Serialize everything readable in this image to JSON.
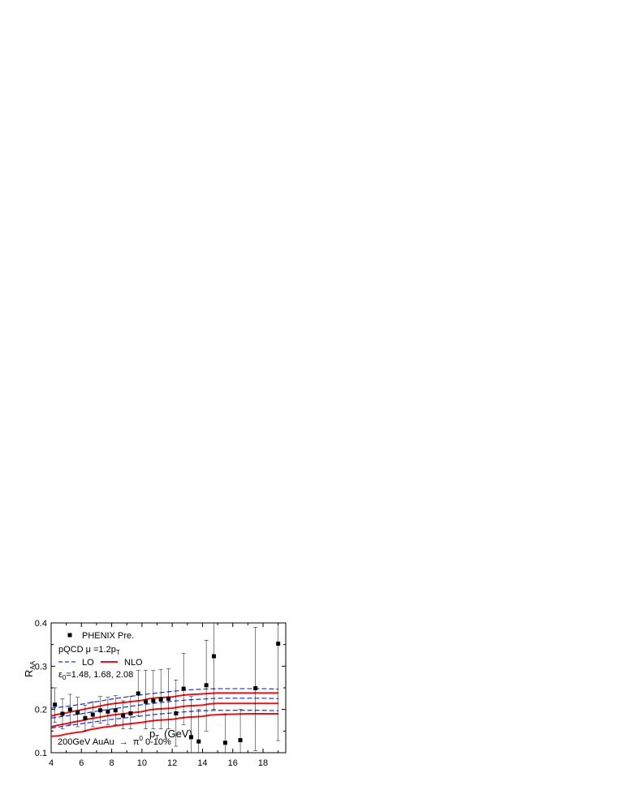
{
  "chart_data": {
    "type": "line",
    "xlabel_main": "p",
    "xlabel_sub": "T",
    "xlabel_unit": "(GeV)",
    "ylabel_main": "R",
    "ylabel_sub": "AA",
    "xlim": [
      4,
      19.5
    ],
    "ylim": [
      0.1,
      0.4
    ],
    "xticks": [
      4,
      6,
      8,
      10,
      12,
      14,
      16,
      18
    ],
    "yticks": [
      0.1,
      0.2,
      0.3,
      0.4
    ],
    "ytick_labels": [
      "0.1",
      "0.2",
      "0.3",
      "0.4"
    ],
    "legend": {
      "data_label": "PHENIX  Pre.",
      "model_line1_a": "pQCD  μ =1.2p",
      "model_line1_sub": "T",
      "lo_label": "LO",
      "nlo_label": "NLO",
      "eps_main": "ε",
      "eps_sub": "0",
      "eps_values": "=1.48, 1.68, 2.08"
    },
    "annotation": {
      "text_a": "200GeV  AuAu",
      "arrow": "→",
      "text_b": "π",
      "text_sup": "0",
      "text_c": " 0-10%"
    },
    "series": [
      {
        "name": "PHENIX  Pre.",
        "kind": "points",
        "color": "#000000",
        "points": [
          {
            "x": 4.25,
            "y": 0.211,
            "ylo": 0.17,
            "yhi": 0.25
          },
          {
            "x": 4.75,
            "y": 0.19,
            "ylo": 0.155,
            "yhi": 0.225
          },
          {
            "x": 5.25,
            "y": 0.2,
            "ylo": 0.165,
            "yhi": 0.235
          },
          {
            "x": 5.75,
            "y": 0.193,
            "ylo": 0.16,
            "yhi": 0.228
          },
          {
            "x": 6.25,
            "y": 0.18,
            "ylo": 0.15,
            "yhi": 0.21
          },
          {
            "x": 6.75,
            "y": 0.188,
            "ylo": 0.16,
            "yhi": 0.218
          },
          {
            "x": 7.25,
            "y": 0.198,
            "ylo": 0.168,
            "yhi": 0.23
          },
          {
            "x": 7.75,
            "y": 0.195,
            "ylo": 0.165,
            "yhi": 0.228
          },
          {
            "x": 8.25,
            "y": 0.198,
            "ylo": 0.165,
            "yhi": 0.232
          },
          {
            "x": 8.75,
            "y": 0.186,
            "ylo": 0.155,
            "yhi": 0.22
          },
          {
            "x": 9.25,
            "y": 0.191,
            "ylo": 0.155,
            "yhi": 0.23
          },
          {
            "x": 9.75,
            "y": 0.237,
            "ylo": 0.185,
            "yhi": 0.29
          },
          {
            "x": 10.25,
            "y": 0.218,
            "ylo": 0.155,
            "yhi": 0.29
          },
          {
            "x": 10.75,
            "y": 0.22,
            "ylo": 0.155,
            "yhi": 0.29
          },
          {
            "x": 11.25,
            "y": 0.223,
            "ylo": 0.155,
            "yhi": 0.292
          },
          {
            "x": 11.75,
            "y": 0.225,
            "ylo": 0.155,
            "yhi": 0.294
          },
          {
            "x": 12.25,
            "y": 0.191,
            "ylo": 0.115,
            "yhi": 0.268
          },
          {
            "x": 12.75,
            "y": 0.248,
            "ylo": 0.165,
            "yhi": 0.33
          },
          {
            "x": 13.25,
            "y": 0.136,
            "ylo": 0.1,
            "yhi": 0.23
          },
          {
            "x": 13.75,
            "y": 0.126,
            "ylo": 0.1,
            "yhi": 0.2
          },
          {
            "x": 14.25,
            "y": 0.256,
            "ylo": 0.15,
            "yhi": 0.36
          },
          {
            "x": 14.75,
            "y": 0.323,
            "ylo": 0.2,
            "yhi": 0.4
          },
          {
            "x": 15.5,
            "y": 0.123,
            "ylo": 0.1,
            "yhi": 0.19
          },
          {
            "x": 16.5,
            "y": 0.129,
            "ylo": 0.1,
            "yhi": 0.2
          },
          {
            "x": 17.5,
            "y": 0.249,
            "ylo": 0.105,
            "yhi": 0.39
          },
          {
            "x": 19.0,
            "y": 0.352,
            "ylo": 0.128,
            "yhi": 0.4
          }
        ]
      },
      {
        "name": "LO",
        "kind": "line",
        "dash": true,
        "color": "#1f2fd0",
        "curves": [
          {
            "x": [
              4,
              5,
              6,
              7,
              8,
              9,
              10,
              11,
              12,
              13,
              14,
              15,
              16,
              17,
              18,
              19
            ],
            "y": [
              0.203,
              0.207,
              0.212,
              0.218,
              0.224,
              0.229,
              0.234,
              0.238,
              0.242,
              0.245,
              0.247,
              0.248,
              0.248,
              0.248,
              0.248,
              0.247
            ]
          },
          {
            "x": [
              4,
              5,
              6,
              7,
              8,
              9,
              10,
              11,
              12,
              13,
              14,
              15,
              16,
              17,
              18,
              19
            ],
            "y": [
              0.18,
              0.185,
              0.19,
              0.196,
              0.201,
              0.206,
              0.211,
              0.215,
              0.219,
              0.222,
              0.224,
              0.226,
              0.226,
              0.226,
              0.226,
              0.225
            ]
          },
          {
            "x": [
              4,
              5,
              6,
              7,
              8,
              9,
              10,
              11,
              12,
              13,
              14,
              15,
              16,
              17,
              18,
              19
            ],
            "y": [
              0.157,
              0.162,
              0.167,
              0.172,
              0.177,
              0.181,
              0.185,
              0.189,
              0.192,
              0.195,
              0.197,
              0.198,
              0.198,
              0.198,
              0.198,
              0.197
            ]
          }
        ]
      },
      {
        "name": "NLO",
        "kind": "line",
        "dash": false,
        "color": "#e8141b",
        "curves": [
          {
            "x": [
              4,
              4.5,
              5,
              5.5,
              6,
              6.5,
              7,
              7.5,
              8,
              9,
              10,
              10.5,
              11,
              12,
              12.5,
              13,
              14,
              14.5,
              15,
              16,
              17,
              18,
              19
            ],
            "y": [
              0.185,
              0.189,
              0.192,
              0.196,
              0.199,
              0.203,
              0.206,
              0.21,
              0.213,
              0.217,
              0.221,
              0.225,
              0.227,
              0.229,
              0.232,
              0.234,
              0.236,
              0.237,
              0.238,
              0.238,
              0.238,
              0.238,
              0.238
            ]
          },
          {
            "x": [
              4,
              4.5,
              5,
              5.5,
              6,
              6.5,
              7,
              7.5,
              8,
              9,
              10,
              10.5,
              11,
              12,
              12.5,
              13,
              14,
              14.5,
              15,
              16,
              17,
              18,
              19
            ],
            "y": [
              0.16,
              0.164,
              0.167,
              0.171,
              0.174,
              0.178,
              0.181,
              0.184,
              0.187,
              0.191,
              0.195,
              0.199,
              0.201,
              0.203,
              0.206,
              0.208,
              0.21,
              0.213,
              0.214,
              0.214,
              0.214,
              0.214,
              0.214
            ]
          },
          {
            "x": [
              4,
              4.5,
              5,
              5.5,
              6,
              6.5,
              7,
              7.5,
              8,
              9,
              10,
              10.5,
              11,
              12,
              12.5,
              13,
              14,
              14.5,
              15,
              16,
              17,
              18,
              19
            ],
            "y": [
              0.138,
              0.139,
              0.143,
              0.146,
              0.148,
              0.153,
              0.156,
              0.159,
              0.161,
              0.166,
              0.17,
              0.173,
              0.175,
              0.177,
              0.18,
              0.182,
              0.184,
              0.187,
              0.188,
              0.189,
              0.19,
              0.19,
              0.19
            ]
          }
        ]
      }
    ]
  }
}
